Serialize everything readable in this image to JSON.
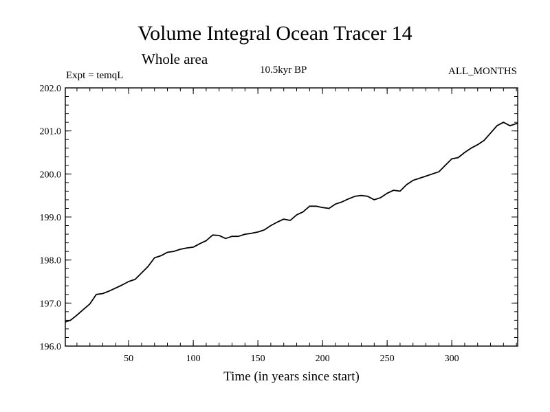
{
  "chart_data": {
    "type": "line",
    "title": "Volume Integral Ocean Tracer 14",
    "subtitle": "Whole area",
    "top_left_label": "Expt = temqL",
    "top_center_label": "10.5kyr BP",
    "top_right_label": "ALL_MONTHS",
    "xlabel": "Time (in years since start)",
    "ylabel": "",
    "xlim": [
      1,
      351
    ],
    "ylim": [
      196.0,
      202.0
    ],
    "x_ticks": [
      50,
      100,
      150,
      200,
      250,
      300
    ],
    "y_ticks": [
      "196.0",
      "197.0",
      "198.0",
      "199.0",
      "200.0",
      "201.0",
      "202.0"
    ],
    "grid": false,
    "legend": "none",
    "line_color": "#000000",
    "series": [
      {
        "x": [
          1,
          5,
          10,
          15,
          20,
          25,
          30,
          35,
          40,
          45,
          50,
          55,
          60,
          65,
          70,
          75,
          80,
          85,
          90,
          95,
          100,
          105,
          110,
          115,
          120,
          125,
          130,
          135,
          140,
          145,
          150,
          155,
          160,
          165,
          170,
          175,
          180,
          185,
          190,
          195,
          200,
          205,
          210,
          215,
          220,
          225,
          230,
          235,
          240,
          245,
          250,
          255,
          260,
          265,
          270,
          275,
          280,
          285,
          290,
          295,
          300,
          305,
          310,
          315,
          320,
          325,
          330,
          335,
          340,
          345,
          351
        ],
        "y": [
          196.56,
          196.6,
          196.72,
          196.85,
          196.98,
          197.2,
          197.22,
          197.28,
          197.35,
          197.42,
          197.5,
          197.55,
          197.7,
          197.85,
          198.05,
          198.1,
          198.18,
          198.2,
          198.25,
          198.28,
          198.3,
          198.38,
          198.45,
          198.58,
          198.57,
          198.5,
          198.55,
          198.55,
          198.6,
          198.62,
          198.65,
          198.7,
          198.8,
          198.88,
          198.95,
          198.92,
          199.05,
          199.12,
          199.25,
          199.25,
          199.22,
          199.2,
          199.3,
          199.35,
          199.42,
          199.48,
          199.5,
          199.48,
          199.4,
          199.45,
          199.55,
          199.62,
          199.6,
          199.75,
          199.85,
          199.9,
          199.95,
          200.0,
          200.05,
          200.2,
          200.35,
          200.38,
          200.5,
          200.6,
          200.68,
          200.78,
          200.95,
          201.12,
          201.2,
          201.12,
          201.18
        ]
      }
    ]
  }
}
